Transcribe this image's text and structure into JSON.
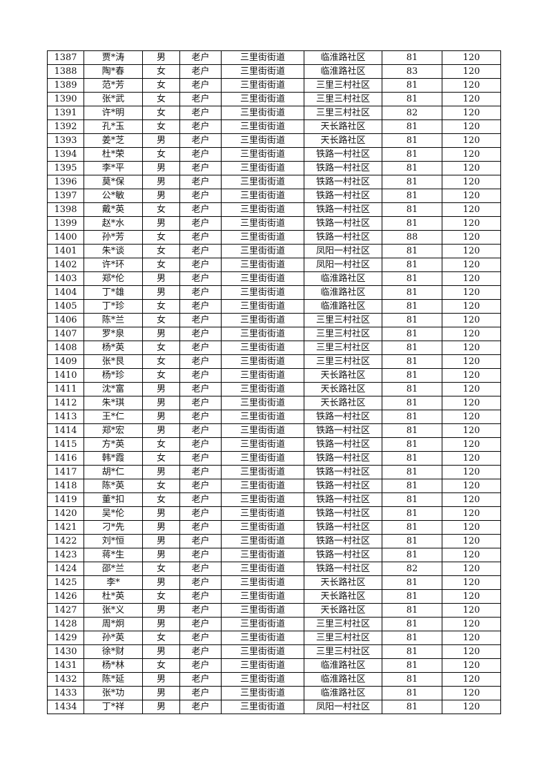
{
  "rows": [
    [
      "1387",
      "贾*涛",
      "男",
      "老户",
      "三里街街道",
      "临淮路社区",
      "81",
      "120"
    ],
    [
      "1388",
      "陶*春",
      "女",
      "老户",
      "三里街街道",
      "临淮路社区",
      "83",
      "120"
    ],
    [
      "1389",
      "范*芳",
      "女",
      "老户",
      "三里街街道",
      "三里三村社区",
      "81",
      "120"
    ],
    [
      "1390",
      "张*武",
      "女",
      "老户",
      "三里街街道",
      "三里三村社区",
      "81",
      "120"
    ],
    [
      "1391",
      "许*明",
      "女",
      "老户",
      "三里街街道",
      "三里三村社区",
      "82",
      "120"
    ],
    [
      "1392",
      "孔*玉",
      "女",
      "老户",
      "三里街街道",
      "天长路社区",
      "81",
      "120"
    ],
    [
      "1393",
      "姜*芝",
      "男",
      "老户",
      "三里街街道",
      "天长路社区",
      "81",
      "120"
    ],
    [
      "1394",
      "杜*荣",
      "女",
      "老户",
      "三里街街道",
      "铁路一村社区",
      "81",
      "120"
    ],
    [
      "1395",
      "李*平",
      "男",
      "老户",
      "三里街街道",
      "铁路一村社区",
      "81",
      "120"
    ],
    [
      "1396",
      "莫*保",
      "男",
      "老户",
      "三里街街道",
      "铁路一村社区",
      "81",
      "120"
    ],
    [
      "1397",
      "公*敏",
      "男",
      "老户",
      "三里街街道",
      "铁路一村社区",
      "81",
      "120"
    ],
    [
      "1398",
      "戴*英",
      "女",
      "老户",
      "三里街街道",
      "铁路一村社区",
      "81",
      "120"
    ],
    [
      "1399",
      "赵*水",
      "男",
      "老户",
      "三里街街道",
      "铁路一村社区",
      "81",
      "120"
    ],
    [
      "1400",
      "孙*芳",
      "女",
      "老户",
      "三里街街道",
      "铁路一村社区",
      "88",
      "120"
    ],
    [
      "1401",
      "朱*谈",
      "女",
      "老户",
      "三里街街道",
      "凤阳一村社区",
      "81",
      "120"
    ],
    [
      "1402",
      "许*环",
      "女",
      "老户",
      "三里街街道",
      "凤阳一村社区",
      "81",
      "120"
    ],
    [
      "1403",
      "郑*伦",
      "男",
      "老户",
      "三里街街道",
      "临淮路社区",
      "81",
      "120"
    ],
    [
      "1404",
      "丁*雄",
      "男",
      "老户",
      "三里街街道",
      "临淮路社区",
      "81",
      "120"
    ],
    [
      "1405",
      "丁*珍",
      "女",
      "老户",
      "三里街街道",
      "临淮路社区",
      "81",
      "120"
    ],
    [
      "1406",
      "陈*兰",
      "女",
      "老户",
      "三里街街道",
      "三里三村社区",
      "81",
      "120"
    ],
    [
      "1407",
      "罗*泉",
      "男",
      "老户",
      "三里街街道",
      "三里三村社区",
      "81",
      "120"
    ],
    [
      "1408",
      "杨*英",
      "女",
      "老户",
      "三里街街道",
      "三里三村社区",
      "81",
      "120"
    ],
    [
      "1409",
      "张*艮",
      "女",
      "老户",
      "三里街街道",
      "三里三村社区",
      "81",
      "120"
    ],
    [
      "1410",
      "杨*珍",
      "女",
      "老户",
      "三里街街道",
      "天长路社区",
      "81",
      "120"
    ],
    [
      "1411",
      "沈*富",
      "男",
      "老户",
      "三里街街道",
      "天长路社区",
      "81",
      "120"
    ],
    [
      "1412",
      "朱*琪",
      "男",
      "老户",
      "三里街街道",
      "天长路社区",
      "81",
      "120"
    ],
    [
      "1413",
      "王*仁",
      "男",
      "老户",
      "三里街街道",
      "铁路一村社区",
      "81",
      "120"
    ],
    [
      "1414",
      "郑*宏",
      "男",
      "老户",
      "三里街街道",
      "铁路一村社区",
      "81",
      "120"
    ],
    [
      "1415",
      "方*英",
      "女",
      "老户",
      "三里街街道",
      "铁路一村社区",
      "81",
      "120"
    ],
    [
      "1416",
      "韩*霞",
      "女",
      "老户",
      "三里街街道",
      "铁路一村社区",
      "81",
      "120"
    ],
    [
      "1417",
      "胡*仁",
      "男",
      "老户",
      "三里街街道",
      "铁路一村社区",
      "81",
      "120"
    ],
    [
      "1418",
      "陈*英",
      "女",
      "老户",
      "三里街街道",
      "铁路一村社区",
      "81",
      "120"
    ],
    [
      "1419",
      "董*扣",
      "女",
      "老户",
      "三里街街道",
      "铁路一村社区",
      "81",
      "120"
    ],
    [
      "1420",
      "吴*伦",
      "男",
      "老户",
      "三里街街道",
      "铁路一村社区",
      "81",
      "120"
    ],
    [
      "1421",
      "刁*先",
      "男",
      "老户",
      "三里街街道",
      "铁路一村社区",
      "81",
      "120"
    ],
    [
      "1422",
      "刘*恒",
      "男",
      "老户",
      "三里街街道",
      "铁路一村社区",
      "81",
      "120"
    ],
    [
      "1423",
      "蒋*生",
      "男",
      "老户",
      "三里街街道",
      "铁路一村社区",
      "81",
      "120"
    ],
    [
      "1424",
      "邵*兰",
      "女",
      "老户",
      "三里街街道",
      "铁路一村社区",
      "82",
      "120"
    ],
    [
      "1425",
      "李*",
      "男",
      "老户",
      "三里街街道",
      "天长路社区",
      "81",
      "120"
    ],
    [
      "1426",
      "杜*英",
      "女",
      "老户",
      "三里街街道",
      "天长路社区",
      "81",
      "120"
    ],
    [
      "1427",
      "张*义",
      "男",
      "老户",
      "三里街街道",
      "天长路社区",
      "81",
      "120"
    ],
    [
      "1428",
      "周*炯",
      "男",
      "老户",
      "三里街街道",
      "三里三村社区",
      "81",
      "120"
    ],
    [
      "1429",
      "孙*英",
      "女",
      "老户",
      "三里街街道",
      "三里三村社区",
      "81",
      "120"
    ],
    [
      "1430",
      "徐*财",
      "男",
      "老户",
      "三里街街道",
      "三里三村社区",
      "81",
      "120"
    ],
    [
      "1431",
      "杨*林",
      "女",
      "老户",
      "三里街街道",
      "临淮路社区",
      "81",
      "120"
    ],
    [
      "1432",
      "陈*延",
      "男",
      "老户",
      "三里街街道",
      "临淮路社区",
      "81",
      "120"
    ],
    [
      "1433",
      "张*功",
      "男",
      "老户",
      "三里街街道",
      "临淮路社区",
      "81",
      "120"
    ],
    [
      "1434",
      "丁*祥",
      "男",
      "老户",
      "三里街街道",
      "凤阳一村社区",
      "81",
      "120"
    ]
  ]
}
